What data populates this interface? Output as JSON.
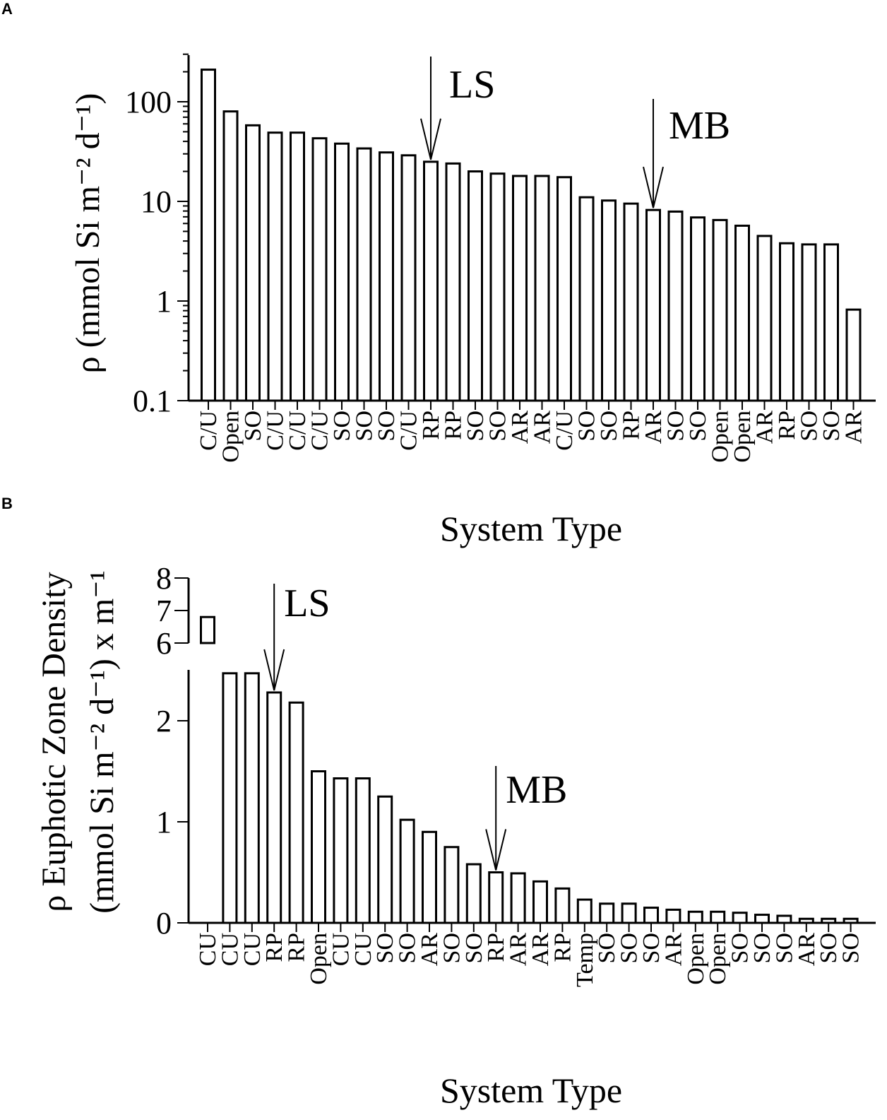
{
  "panels": [
    {
      "letter": "A",
      "ylabel": "ρ (mmol Si m⁻² d⁻¹)",
      "xlabel": "System Type",
      "annotations": [
        {
          "text": "LS",
          "category_index": 10
        },
        {
          "text": "MB",
          "category_index": 20
        }
      ]
    },
    {
      "letter": "B",
      "ylabel_line1": "ρ Euphotic Zone Density",
      "ylabel_line2": "(mmol Si m⁻² d⁻¹) x m⁻¹",
      "xlabel": "System Type",
      "annotations": [
        {
          "text": "LS",
          "category_index": 3
        },
        {
          "text": "MB",
          "category_index": 13
        }
      ]
    }
  ],
  "chart_data": [
    {
      "type": "bar",
      "yscale": "log",
      "ylim": [
        0.1,
        300
      ],
      "yticks": [
        0.1,
        1,
        10,
        100
      ],
      "ytick_labels": [
        "0.1",
        "1",
        "10",
        "100"
      ],
      "xlabel": "System Type",
      "ylabel": "ρ (mmol Si m⁻² d⁻¹)",
      "categories": [
        "C/U",
        "Open",
        "SO",
        "C/U",
        "C/U",
        "C/U",
        "SO",
        "SO",
        "SO",
        "C/U",
        "RP",
        "RP",
        "SO",
        "SO",
        "AR",
        "AR",
        "C/U",
        "SO",
        "SO",
        "RP",
        "AR",
        "SO",
        "SO",
        "Open",
        "Open",
        "AR",
        "RP",
        "SO",
        "SO",
        "AR"
      ],
      "values": [
        210,
        80,
        58,
        49,
        49,
        43,
        38,
        34,
        31,
        29,
        25,
        24,
        20,
        19,
        18,
        18,
        17.5,
        11,
        10.2,
        9.5,
        8.2,
        7.9,
        6.9,
        6.5,
        5.7,
        4.5,
        3.8,
        3.7,
        3.7,
        0.82
      ]
    },
    {
      "type": "bar",
      "yaxis_break": true,
      "lower_ylim": [
        0,
        2.5
      ],
      "upper_ylim": [
        6,
        8
      ],
      "yticks_lower": [
        0,
        1,
        2
      ],
      "yticks_upper": [
        6,
        7,
        8
      ],
      "xlabel": "System Type",
      "ylabel": "ρ Euphotic Zone Density (mmol Si m⁻² d⁻¹) x m⁻¹",
      "categories": [
        "CU",
        "CU",
        "CU",
        "RP",
        "RP",
        "Open",
        "CU",
        "CU",
        "SO",
        "SO",
        "AR",
        "SO",
        "SO",
        "RP",
        "AR",
        "AR",
        "RP",
        "Temp",
        "SO",
        "SO",
        "SO",
        "AR",
        "Open",
        "Open",
        "SO",
        "SO",
        "SO",
        "AR",
        "SO",
        "SO"
      ],
      "values": [
        6.8,
        2.47,
        2.47,
        2.28,
        2.18,
        1.5,
        1.43,
        1.43,
        1.25,
        1.02,
        0.9,
        0.75,
        0.58,
        0.5,
        0.49,
        0.41,
        0.34,
        0.23,
        0.19,
        0.19,
        0.15,
        0.13,
        0.11,
        0.11,
        0.1,
        0.08,
        0.07,
        0.04,
        0.04,
        0.04
      ]
    }
  ]
}
